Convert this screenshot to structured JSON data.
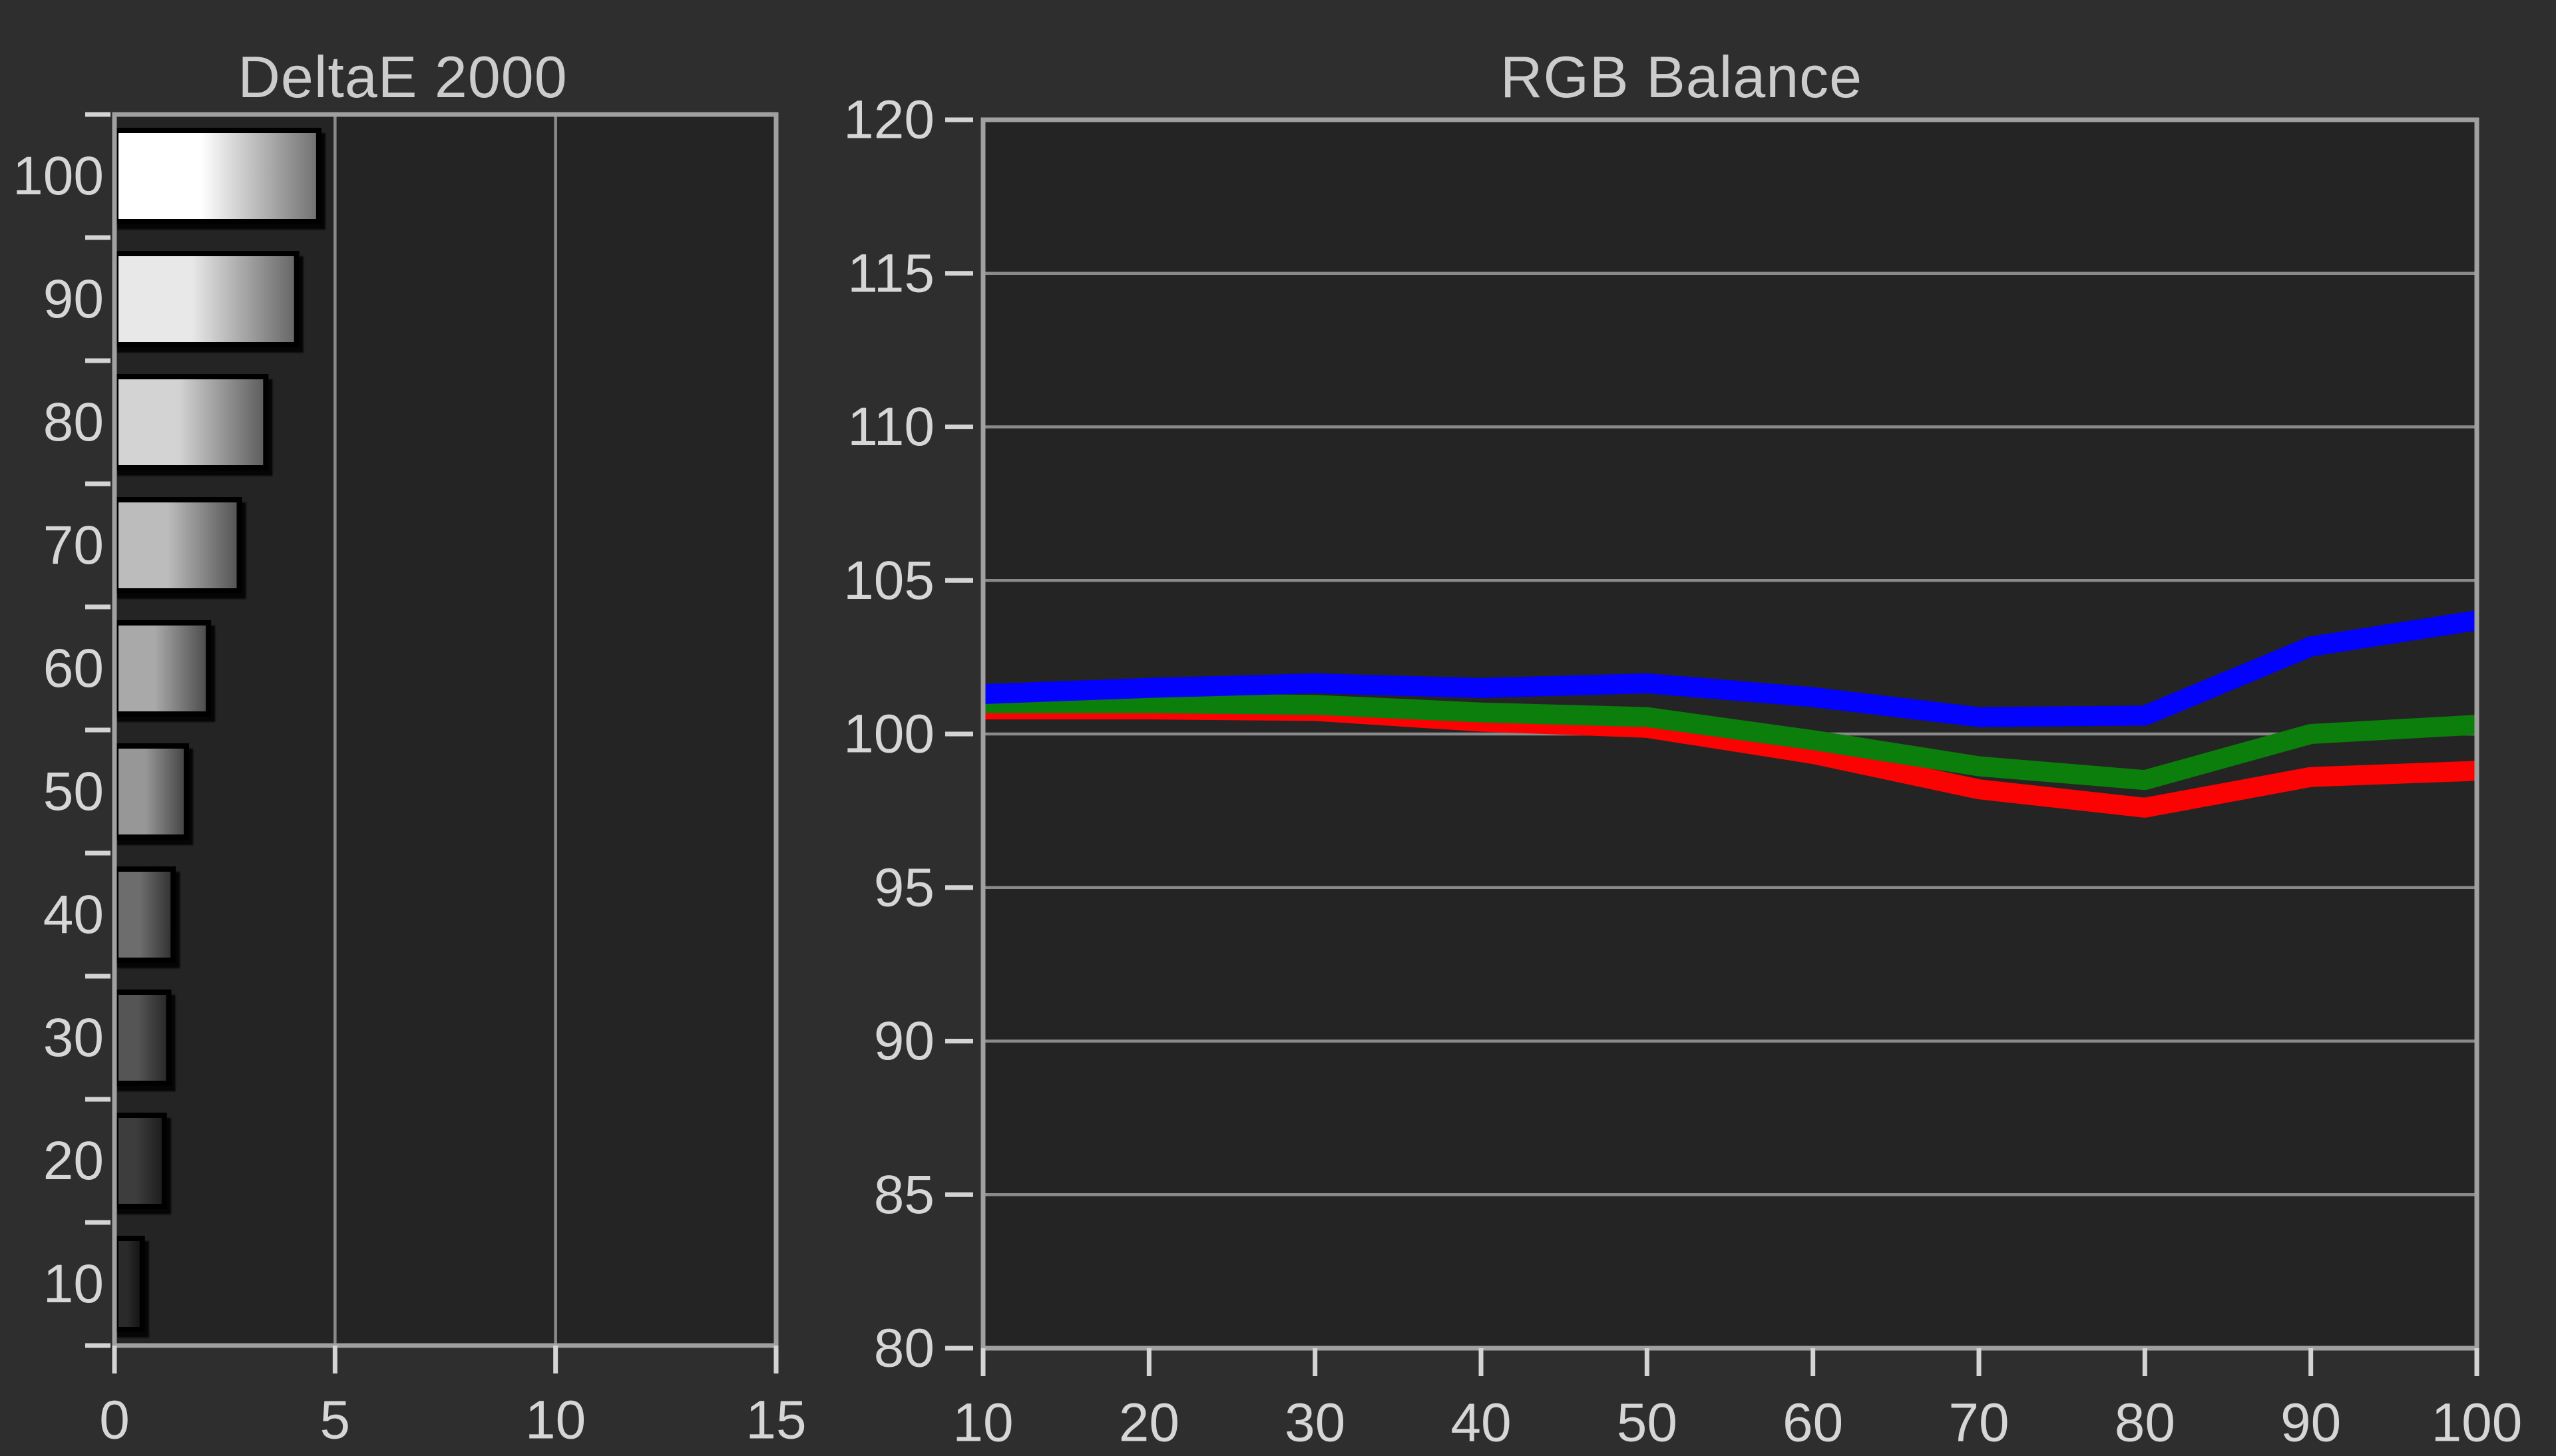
{
  "page": {
    "background": "#2e2e2e",
    "plot_background": "#242424",
    "border_color": "#a0a0a0",
    "grid_color": "#8a8a8a",
    "tick_color": "#d4d4d4",
    "label_color": "#d6d6d6",
    "title_color": "#cccccc",
    "bar_border_color": "#000000"
  },
  "chart_data": [
    {
      "type": "bar",
      "title": "DeltaE 2000",
      "orientation": "horizontal",
      "categories": [
        "100",
        "90",
        "80",
        "70",
        "60",
        "50",
        "40",
        "30",
        "20",
        "10"
      ],
      "values": [
        4.6,
        4.1,
        3.4,
        2.8,
        2.1,
        1.6,
        1.3,
        1.2,
        1.1,
        0.6
      ],
      "xlabel": "",
      "ylabel": "",
      "xlim": [
        0,
        15
      ],
      "xticks": [
        0,
        5,
        10,
        15
      ],
      "grid": "vertical",
      "legend": "none",
      "bar_gradients": [
        [
          "#ffffff",
          "#6f6f6f"
        ],
        [
          "#e8e8e8",
          "#646464"
        ],
        [
          "#d3d3d3",
          "#5b5b5b"
        ],
        [
          "#bcbcbc",
          "#515151"
        ],
        [
          "#a9a9a9",
          "#494949"
        ],
        [
          "#979797",
          "#414141"
        ],
        [
          "#6d6d6d",
          "#2f2f2f"
        ],
        [
          "#555555",
          "#252525"
        ],
        [
          "#3d3d3d",
          "#1b1b1b"
        ],
        [
          "#2a2a2a",
          "#121212"
        ]
      ]
    },
    {
      "type": "line",
      "title": "RGB Balance",
      "x": [
        10,
        20,
        30,
        40,
        50,
        60,
        70,
        80,
        90,
        100
      ],
      "xticks": [
        10,
        20,
        30,
        40,
        50,
        60,
        70,
        80,
        90,
        100
      ],
      "yticks": [
        80,
        85,
        90,
        95,
        100,
        105,
        110,
        115,
        120
      ],
      "ylim": [
        80,
        120
      ],
      "xlim": [
        10,
        100
      ],
      "grid": "horizontal",
      "legend": "none",
      "series": [
        {
          "name": "red",
          "color": "#fb0303",
          "values": [
            100.8,
            100.8,
            100.75,
            100.4,
            100.2,
            99.35,
            98.2,
            97.6,
            98.6,
            98.8
          ]
        },
        {
          "name": "green",
          "color": "#0b7e0b",
          "values": [
            101.0,
            101.0,
            100.95,
            100.7,
            100.55,
            99.8,
            98.95,
            98.5,
            100.0,
            100.3
          ]
        },
        {
          "name": "blue",
          "color": "#0202fe",
          "values": [
            101.3,
            101.5,
            101.65,
            101.5,
            101.65,
            101.2,
            100.55,
            100.6,
            102.85,
            103.7
          ]
        }
      ]
    }
  ]
}
